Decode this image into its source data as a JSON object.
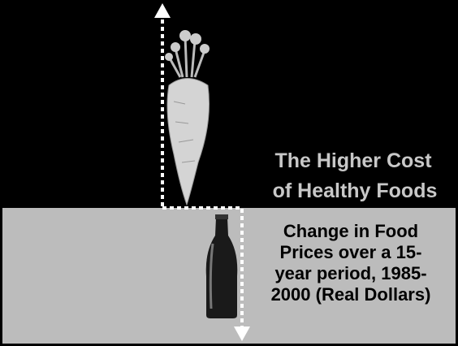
{
  "slide": {
    "title_lines": [
      "The Higher Cost",
      "of Healthy Foods"
    ],
    "caption_lines": [
      "Change in Food",
      "Prices over a 15-",
      "year period, 1985-",
      "2000 (Real Dollars)"
    ]
  }
}
